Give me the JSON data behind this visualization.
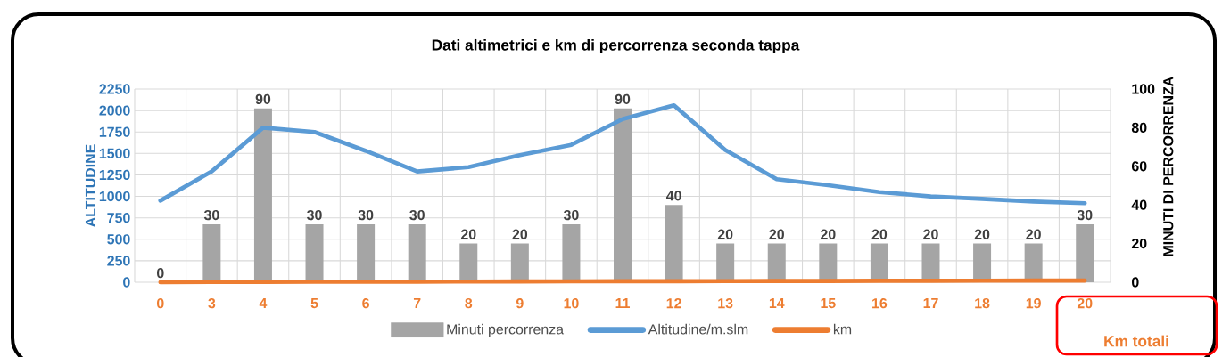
{
  "chart_data": {
    "type": "bar",
    "title": "Dati altimetrici e km di percorrenza seconda tappa",
    "ylabel": "ALTITUDINE",
    "y2label": "MINUTI DI PERCORRENZA",
    "categories": [
      "0",
      "3",
      "4",
      "5",
      "6",
      "7",
      "8",
      "9",
      "10",
      "11",
      "12",
      "13",
      "14",
      "15",
      "16",
      "17",
      "18",
      "19",
      "20"
    ],
    "series": [
      {
        "name": "Minuti percorrenza",
        "axis": "y2",
        "color": "#a5a5a5",
        "values": [
          0,
          30,
          90,
          30,
          30,
          30,
          20,
          20,
          30,
          90,
          40,
          20,
          20,
          20,
          20,
          20,
          20,
          20,
          30
        ],
        "value_labels": [
          "0",
          "30",
          "90",
          "30",
          "30",
          "30",
          "20",
          "20",
          "30",
          "90",
          "40",
          "20",
          "20",
          "20",
          "20",
          "20",
          "20",
          "20",
          "30"
        ]
      },
      {
        "name": "Altitudine/m.slm",
        "type": "line",
        "color": "#5b9bd5",
        "values": [
          950,
          1290,
          1800,
          1750,
          1530,
          1290,
          1340,
          1480,
          1600,
          1900,
          2060,
          1540,
          1200,
          1130,
          1050,
          1000,
          970,
          940,
          920
        ]
      },
      {
        "name": "km",
        "type": "line",
        "color": "#ed7d31",
        "values": [
          0,
          3,
          4,
          5,
          6,
          7,
          8,
          9,
          10,
          11,
          12,
          13,
          14,
          15,
          16,
          17,
          18,
          19,
          20
        ]
      }
    ],
    "ylim": [
      0,
      2250
    ],
    "yticks": [
      0,
      250,
      500,
      750,
      1000,
      1250,
      1500,
      1750,
      2000,
      2250
    ],
    "y2lim": [
      0,
      100
    ],
    "y2ticks": [
      0,
      20,
      40,
      60,
      80,
      100
    ],
    "grid": true,
    "legend": "bottom",
    "annotations": [
      "Km totali"
    ]
  }
}
